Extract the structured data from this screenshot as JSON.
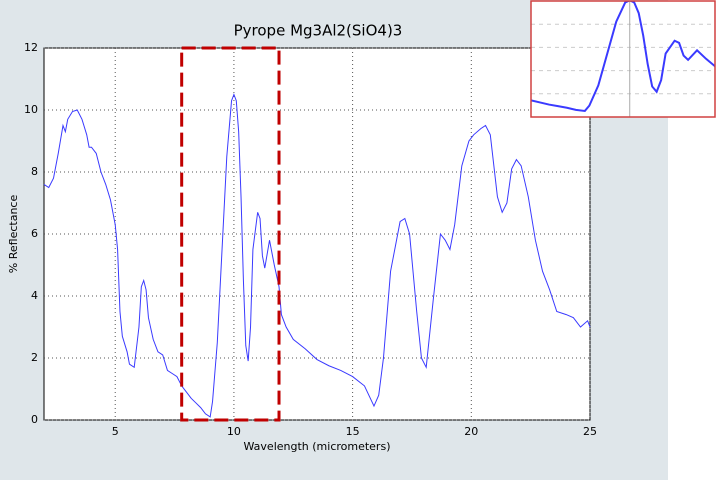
{
  "chart_data": {
    "type": "line",
    "title": "Pyrope Mg3Al2(SiO4)3",
    "x_label": "Wavelength (micrometers)",
    "y_label": "% Reflectance",
    "xlim": [
      2,
      25
    ],
    "ylim": [
      0,
      12
    ],
    "xticks": [
      5,
      10,
      15,
      20,
      25
    ],
    "yticks": [
      0,
      2,
      4,
      6,
      8,
      10,
      12
    ],
    "grid": true,
    "color": "#3a3aff",
    "highlight_x": [
      7.8,
      11.9
    ],
    "highlight_color": "#c00000",
    "x": [
      2.0,
      2.2,
      2.4,
      2.6,
      2.8,
      2.9,
      3.0,
      3.2,
      3.4,
      3.6,
      3.8,
      3.9,
      4.0,
      4.2,
      4.4,
      4.6,
      4.8,
      5.0,
      5.1,
      5.2,
      5.3,
      5.5,
      5.6,
      5.8,
      6.0,
      6.1,
      6.2,
      6.3,
      6.4,
      6.6,
      6.8,
      7.0,
      7.2,
      7.4,
      7.6,
      7.8,
      8.0,
      8.2,
      8.4,
      8.6,
      8.8,
      9.0,
      9.1,
      9.3,
      9.5,
      9.7,
      9.9,
      10.0,
      10.1,
      10.2,
      10.3,
      10.4,
      10.5,
      10.6,
      10.7,
      10.8,
      11.0,
      11.1,
      11.2,
      11.3,
      11.5,
      11.7,
      11.9,
      12.0,
      12.2,
      12.5,
      13.0,
      13.5,
      14.0,
      14.5,
      15.0,
      15.5,
      15.9,
      16.1,
      16.3,
      16.6,
      17.0,
      17.2,
      17.4,
      17.7,
      17.9,
      18.1,
      18.4,
      18.7,
      18.9,
      19.1,
      19.3,
      19.6,
      19.9,
      20.1,
      20.4,
      20.6,
      20.8,
      21.1,
      21.3,
      21.5,
      21.7,
      21.9,
      22.1,
      22.4,
      22.7,
      23.0,
      23.3,
      23.6,
      24.0,
      24.3,
      24.6,
      24.9,
      25.0
    ],
    "values": [
      7.6,
      7.5,
      7.8,
      8.6,
      9.5,
      9.3,
      9.7,
      9.95,
      10.0,
      9.7,
      9.2,
      8.8,
      8.8,
      8.6,
      8.0,
      7.6,
      7.1,
      6.3,
      5.5,
      3.5,
      2.7,
      2.2,
      1.8,
      1.7,
      3.0,
      4.3,
      4.5,
      4.2,
      3.3,
      2.6,
      2.2,
      2.1,
      1.6,
      1.5,
      1.4,
      1.1,
      0.9,
      0.7,
      0.55,
      0.4,
      0.2,
      0.1,
      0.6,
      2.5,
      5.5,
      8.5,
      10.3,
      10.5,
      10.3,
      9.3,
      7.2,
      4.5,
      2.4,
      1.9,
      3.0,
      5.5,
      6.7,
      6.5,
      5.3,
      4.9,
      5.8,
      5.0,
      4.3,
      3.4,
      3.0,
      2.6,
      2.3,
      1.95,
      1.75,
      1.6,
      1.4,
      1.1,
      0.45,
      0.8,
      2.0,
      4.8,
      6.4,
      6.5,
      6.0,
      3.5,
      2.0,
      1.7,
      3.9,
      6.0,
      5.8,
      5.5,
      6.3,
      8.2,
      9.0,
      9.2,
      9.4,
      9.5,
      9.2,
      7.2,
      6.7,
      7.0,
      8.1,
      8.4,
      8.2,
      7.2,
      5.8,
      4.8,
      4.2,
      3.5,
      3.4,
      3.3,
      3.0,
      3.2,
      3.0
    ]
  }
}
